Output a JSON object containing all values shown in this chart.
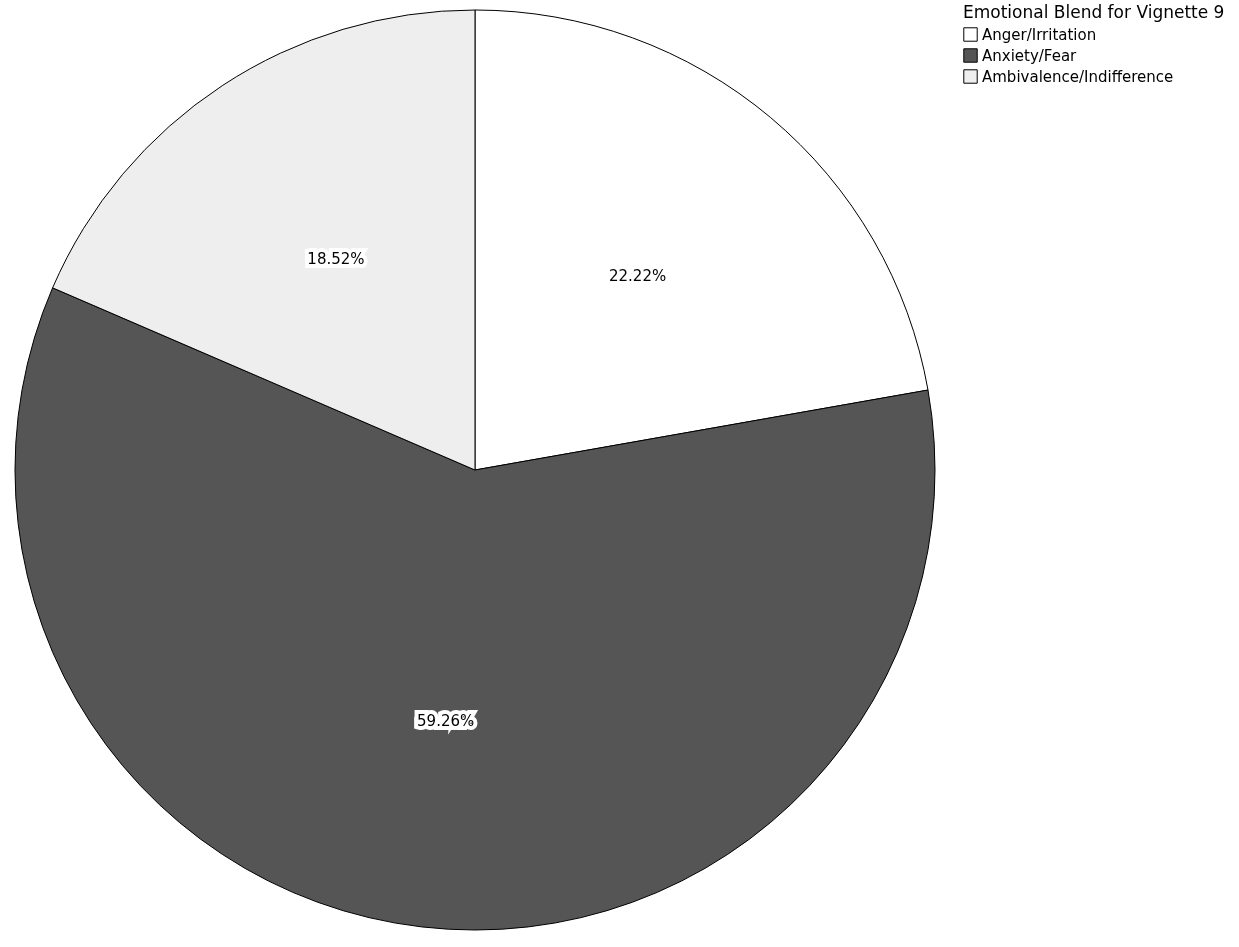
{
  "chart_data": {
    "type": "pie",
    "legend_title": "Emotional Blend for Vignette 9",
    "categories": [
      "Anger/Irritation",
      "Anxiety/Fear",
      "Ambivalence/Indifference"
    ],
    "values": [
      22.22,
      59.26,
      18.52
    ],
    "colors": [
      "#ffffff",
      "#555555",
      "#eeeeee"
    ],
    "value_labels": [
      "22.22%",
      "59.26%",
      "18.52%"
    ],
    "legend": "top right"
  }
}
